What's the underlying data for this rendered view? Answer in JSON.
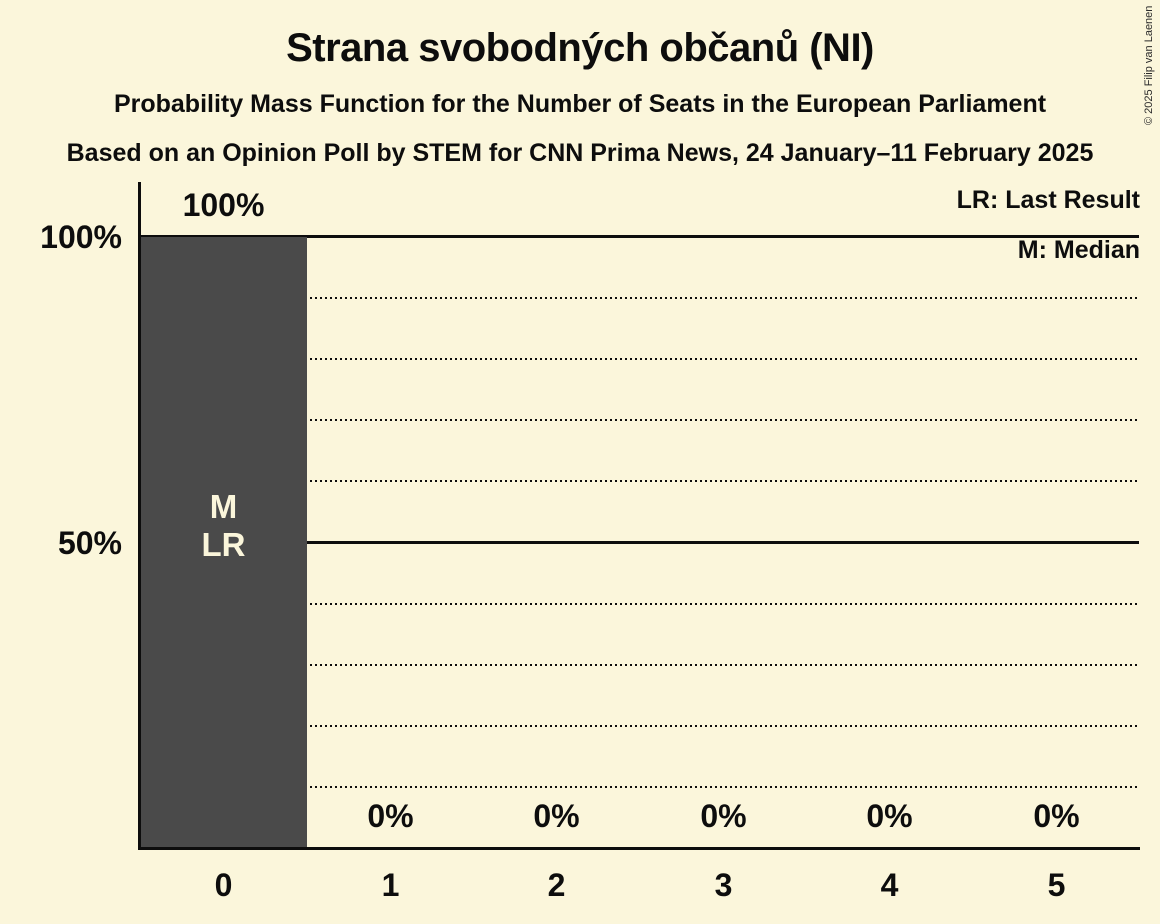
{
  "header": {
    "title": "Strana svobodných občanů (NI)",
    "subtitle": "Probability Mass Function for the Number of Seats in the European Parliament",
    "source_line": "Based on an Opinion Poll by STEM for CNN Prima News, 24 January–11 February 2025"
  },
  "legend": {
    "last_result": "LR: Last Result",
    "median": "M: Median"
  },
  "copyright": "© 2025 Filip van Laenen",
  "chart_data": {
    "type": "bar",
    "title": "Strana svobodných občanů (NI)",
    "xlabel": "",
    "ylabel": "",
    "categories": [
      "0",
      "1",
      "2",
      "3",
      "4",
      "5"
    ],
    "values": [
      100,
      0,
      0,
      0,
      0,
      0
    ],
    "value_labels": [
      "100%",
      "0%",
      "0%",
      "0%",
      "0%",
      "0%"
    ],
    "ylim": [
      0,
      100
    ],
    "yticks": [
      {
        "value": 100,
        "label": "100%"
      },
      {
        "value": 50,
        "label": "50%"
      }
    ],
    "solid_gridlines": [
      100,
      50
    ],
    "dotted_gridlines": [
      90,
      80,
      70,
      60,
      40,
      30,
      20,
      10
    ],
    "grid": true,
    "legend_position": "top-right",
    "bar_annotations": [
      {
        "category": "0",
        "lines": [
          "M",
          "LR"
        ],
        "meaning": "Median and Last Result at 0 seats"
      }
    ],
    "colors": {
      "background": "#FBF6DB",
      "bar": "#4A4A4A",
      "bar_text": "#FBF6DB",
      "text": "#0D0D0D",
      "grid": "#0D0D0D"
    }
  }
}
